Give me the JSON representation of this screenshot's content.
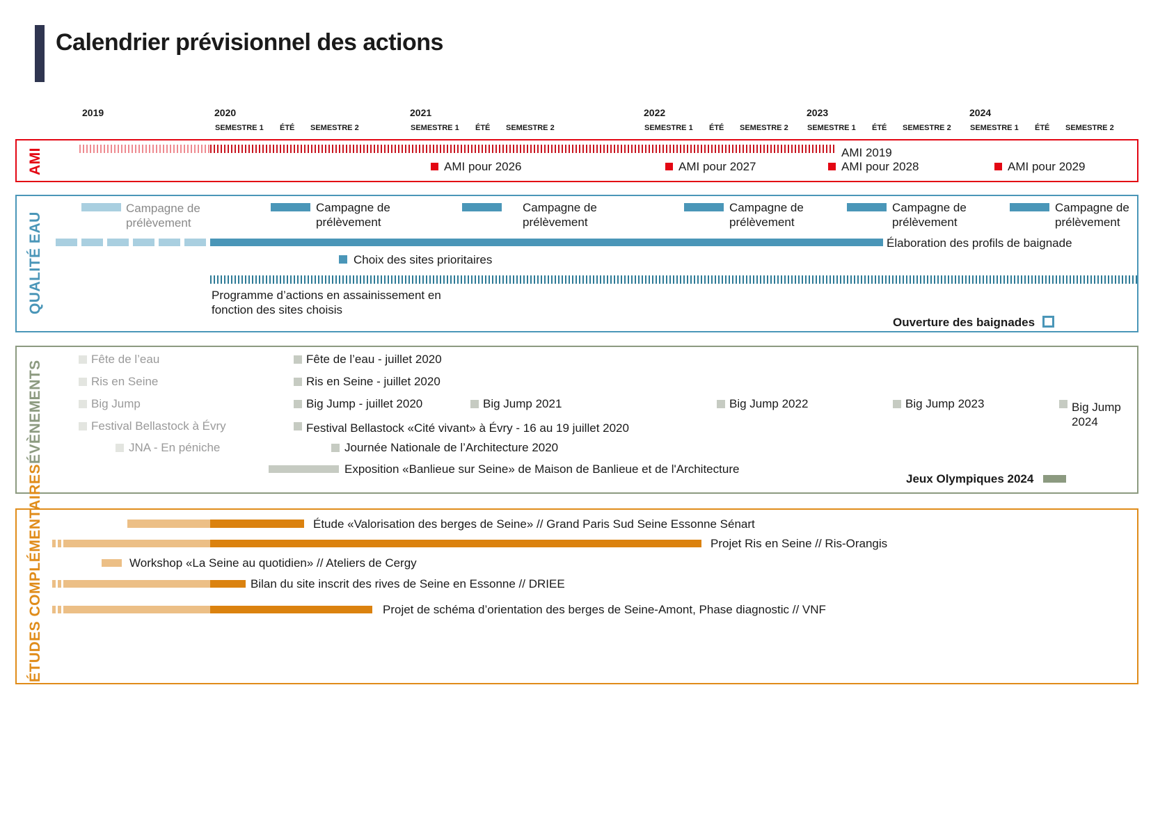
{
  "title": "Calendrier prévisionnel des actions",
  "timeline": {
    "years": [
      "2019",
      "2020",
      "2021",
      "2022",
      "2023",
      "2024"
    ],
    "periods": {
      "s1": "SEMESTRE 1",
      "ete": "ÉTÉ",
      "s2": "SEMESTRE 2"
    }
  },
  "sections": {
    "ami": {
      "label": "AMI",
      "color": "#e30613",
      "ami_2019": "AMI 2019",
      "ami_2026": "AMI pour 2026",
      "ami_2027": "AMI pour 2027",
      "ami_2028": "AMI pour 2028",
      "ami_2029": "AMI pour 2029"
    },
    "qualite": {
      "label": "QUALITÉ EAU",
      "color": "#4a96b8",
      "campagne_line1": "Campagne de",
      "campagne_line2": "prélèvement",
      "profils": "Élaboration des profils de baignade",
      "choix": "Choix des sites prioritaires",
      "programme_line1": "Programme d’actions en assainissement en",
      "programme_line2": "fonction des sites choisis",
      "ouverture": "Ouverture des baignades"
    },
    "evenements": {
      "label": "ÉVÈNEMENTS",
      "color": "#8c9a80",
      "fete": "Fête de l’eau",
      "ris": "Ris en Seine",
      "bigjump": "Big Jump",
      "bellastock": "Festival Bellastock à Évry",
      "jna": "JNA - En péniche",
      "fete_2020": "Fête de l’eau - juillet 2020",
      "ris_2020": "Ris en Seine - juillet 2020",
      "bigjump_2020": "Big Jump -  juillet 2020",
      "bigjump_2021": "Big Jump 2021",
      "bigjump_2022": "Big Jump 2022",
      "bigjump_2023": "Big Jump 2023",
      "bigjump_2024_line1": "Big Jump",
      "bigjump_2024_line2": "2024",
      "bellastock_2020": "Festival Bellastock «Cité vivant» à Évry - 16 au 19 juillet 2020",
      "journee_2020": "Journée Nationale de l’Architecture 2020",
      "exposition": "Exposition «Banlieue sur Seine» de Maison de Banlieue et de l'Architecture",
      "jo": "Jeux Olympiques 2024"
    },
    "etudes": {
      "label": "ÉTUDES COMPLÉMENTAIRES",
      "color": "#e08c1a",
      "etude_valorisation": "Étude «Valorisation des berges de Seine» // Grand Paris Sud Seine Essonne Sénart",
      "projet_ris": "Projet Ris en Seine // Ris-Orangis",
      "workshop": "Workshop «La Seine au quotidien» // Ateliers de Cergy",
      "bilan": "Bilan du site inscrit des rives de Seine en Essonne // DRIEE",
      "schema": "Projet de schéma d’orientation des berges de Seine-Amont, Phase diagnostic // VNF"
    }
  }
}
